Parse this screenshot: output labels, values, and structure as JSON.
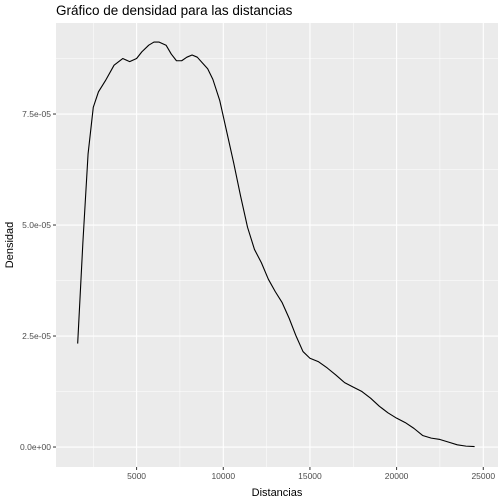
{
  "chart_data": {
    "type": "line",
    "title": "Gráfico de densidad para las distancias",
    "xlabel": "Distancias",
    "ylabel": "Densidad",
    "xlim": [
      350,
      25850
    ],
    "ylim": [
      -4.5e-06,
      9.55e-05
    ],
    "x_ticks": [
      5000,
      10000,
      15000,
      20000,
      25000
    ],
    "x_tick_labels": [
      "5000",
      "10000",
      "15000",
      "20000",
      "25000"
    ],
    "y_ticks": [
      0,
      2.5e-05,
      5e-05,
      7.5e-05
    ],
    "y_tick_labels": [
      "0.0e+00",
      "2.5e-05",
      "5.0e-05",
      "7.5e-05"
    ],
    "grid": true,
    "panel_color": "#ebebeb",
    "grid_color": "#ffffff",
    "line_color": "#000000",
    "series": [
      {
        "x": [
          1600,
          1900,
          2200,
          2500,
          2800,
          3200,
          3700,
          4200,
          4600,
          5000,
          5300,
          5700,
          6000,
          6300,
          6700,
          7000,
          7300,
          7600,
          7900,
          8200,
          8500,
          8800,
          9100,
          9400,
          9800,
          10200,
          10600,
          11000,
          11400,
          11800,
          12200,
          12600,
          13000,
          13400,
          13800,
          14200,
          14600,
          15000,
          15500,
          16000,
          16500,
          17000,
          17500,
          18000,
          18500,
          19000,
          19500,
          20000,
          20500,
          21000,
          21500,
          22000,
          22500,
          23000,
          23500,
          24000,
          24500
        ],
        "y": [
          2.33e-05,
          4.6e-05,
          6.6e-05,
          7.65e-05,
          8e-05,
          8.25e-05,
          8.6e-05,
          8.75e-05,
          8.68e-05,
          8.75e-05,
          8.9e-05,
          9.05e-05,
          9.12e-05,
          9.12e-05,
          9.05e-05,
          8.85e-05,
          8.7e-05,
          8.7e-05,
          8.78e-05,
          8.83e-05,
          8.78e-05,
          8.65e-05,
          8.52e-05,
          8.28e-05,
          7.8e-05,
          7.1e-05,
          6.4e-05,
          5.65e-05,
          4.95e-05,
          4.45e-05,
          4.15e-05,
          3.78e-05,
          3.5e-05,
          3.25e-05,
          2.9e-05,
          2.5e-05,
          2.15e-05,
          2e-05,
          1.92e-05,
          1.78e-05,
          1.62e-05,
          1.45e-05,
          1.35e-05,
          1.25e-05,
          1.1e-05,
          9.2e-06,
          7.7e-06,
          6.5e-06,
          5.5e-06,
          4.2e-06,
          2.6e-06,
          2e-06,
          1.7e-06,
          1.1e-06,
          5e-07,
          2e-07,
          1e-07
        ]
      }
    ]
  }
}
